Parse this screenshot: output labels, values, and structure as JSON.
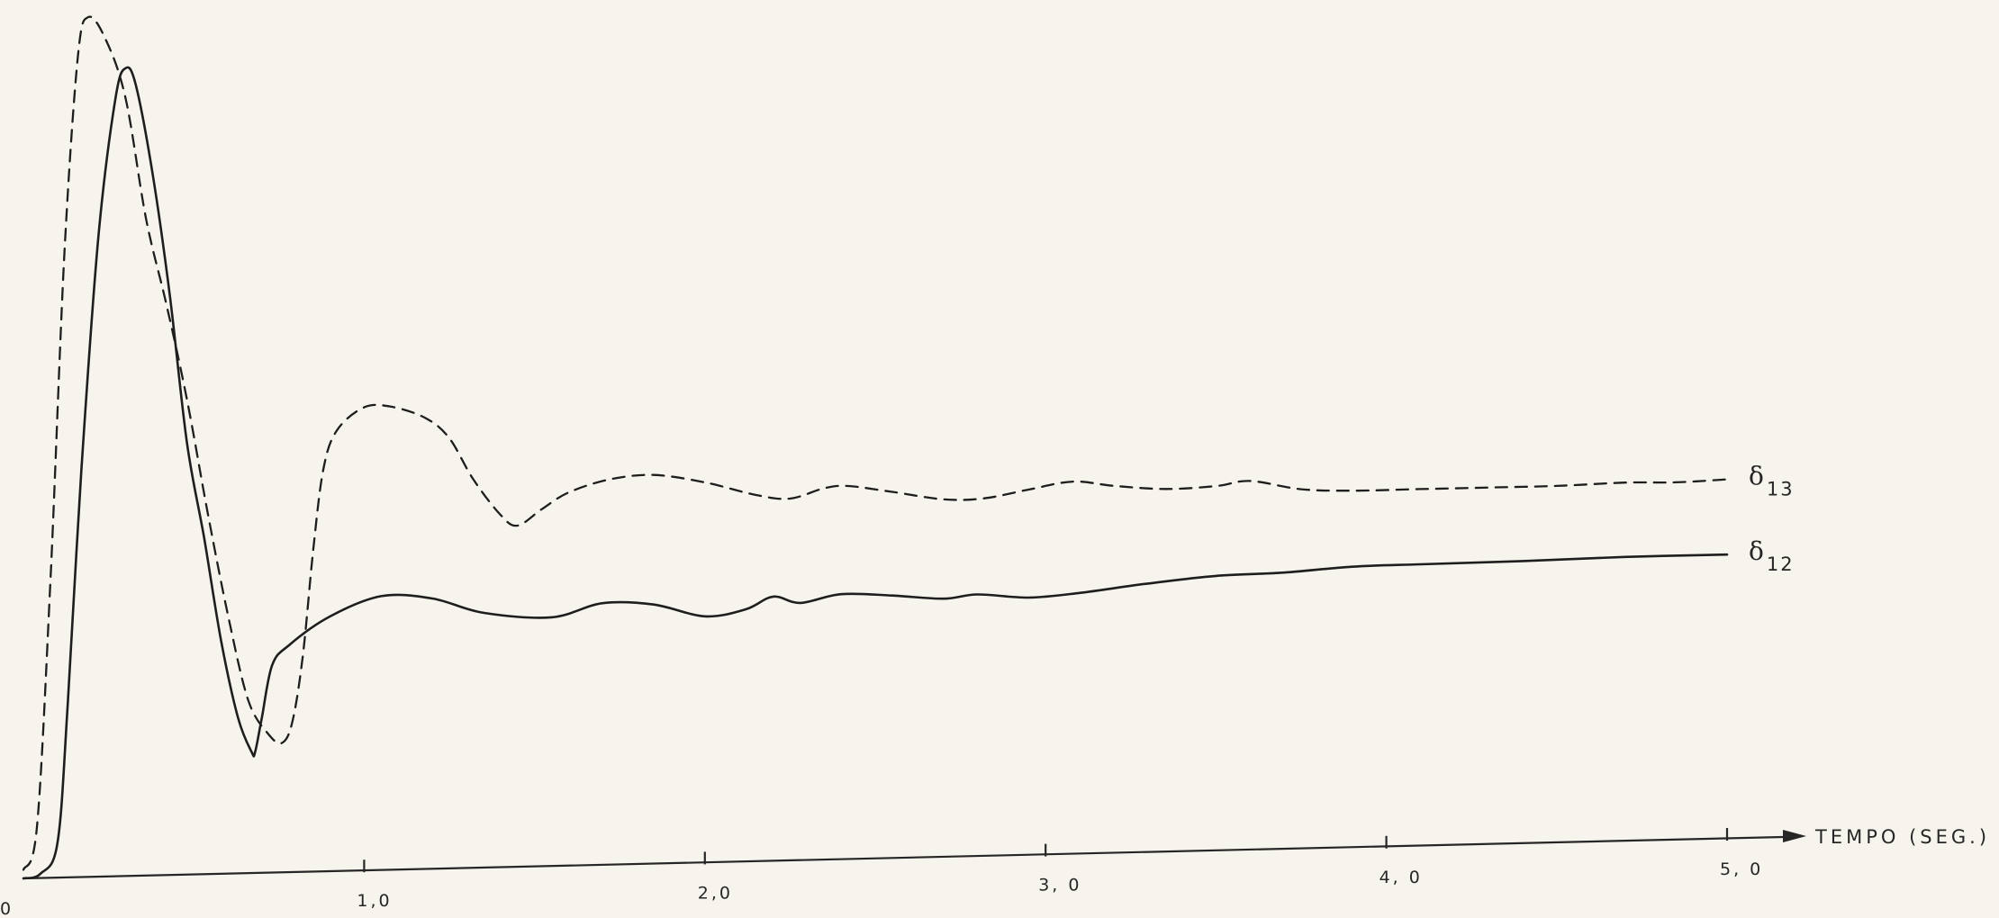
{
  "chart_data": {
    "type": "line",
    "title": "",
    "xlabel": "TEMPO  (SEG.)",
    "ylabel": "",
    "xlim": [
      0,
      5.3
    ],
    "ylim": [
      0,
      1.0
    ],
    "grid": false,
    "legend": "inline labels at right end of curves",
    "xticks": [
      {
        "value": 0.0,
        "label": "0"
      },
      {
        "value": 1.0,
        "label": "1,0"
      },
      {
        "value": 2.0,
        "label": "2,0"
      },
      {
        "value": 3.0,
        "label": "3, 0"
      },
      {
        "value": 4.0,
        "label": "4, 0"
      },
      {
        "value": 5.0,
        "label": "5, 0"
      }
    ],
    "series": [
      {
        "key": "e12",
        "name": "δ12",
        "style": "solid",
        "label_main": "δ",
        "label_sub": "12",
        "points": [
          [
            0.0,
            0.0
          ],
          [
            0.05,
            0.005
          ],
          [
            0.1,
            0.04
          ],
          [
            0.13,
            0.2
          ],
          [
            0.17,
            0.47
          ],
          [
            0.22,
            0.74
          ],
          [
            0.27,
            0.9
          ],
          [
            0.3,
            0.935
          ],
          [
            0.33,
            0.915
          ],
          [
            0.38,
            0.81
          ],
          [
            0.43,
            0.67
          ],
          [
            0.48,
            0.5
          ],
          [
            0.53,
            0.39
          ],
          [
            0.58,
            0.27
          ],
          [
            0.63,
            0.18
          ],
          [
            0.67,
            0.14
          ],
          [
            0.68,
            0.14
          ],
          [
            0.7,
            0.18
          ],
          [
            0.73,
            0.24
          ],
          [
            0.78,
            0.263
          ],
          [
            0.9,
            0.295
          ],
          [
            1.05,
            0.317
          ],
          [
            1.2,
            0.313
          ],
          [
            1.35,
            0.295
          ],
          [
            1.55,
            0.288
          ],
          [
            1.7,
            0.303
          ],
          [
            1.85,
            0.3
          ],
          [
            2.0,
            0.285
          ],
          [
            2.12,
            0.292
          ],
          [
            2.2,
            0.306
          ],
          [
            2.28,
            0.298
          ],
          [
            2.4,
            0.307
          ],
          [
            2.55,
            0.304
          ],
          [
            2.7,
            0.299
          ],
          [
            2.8,
            0.303
          ],
          [
            2.95,
            0.298
          ],
          [
            3.1,
            0.302
          ],
          [
            3.3,
            0.311
          ],
          [
            3.5,
            0.318
          ],
          [
            3.7,
            0.32
          ],
          [
            3.9,
            0.325
          ],
          [
            4.1,
            0.326
          ],
          [
            4.4,
            0.327
          ],
          [
            4.7,
            0.329
          ],
          [
            5.0,
            0.329
          ]
        ]
      },
      {
        "key": "e13",
        "name": "δ13",
        "style": "dashed",
        "label_main": "δ",
        "label_sub": "13",
        "points": [
          [
            0.0,
            0.01
          ],
          [
            0.04,
            0.06
          ],
          [
            0.08,
            0.35
          ],
          [
            0.12,
            0.72
          ],
          [
            0.16,
            0.95
          ],
          [
            0.19,
            0.995
          ],
          [
            0.24,
            0.97
          ],
          [
            0.3,
            0.9
          ],
          [
            0.36,
            0.76
          ],
          [
            0.42,
            0.66
          ],
          [
            0.48,
            0.55
          ],
          [
            0.54,
            0.42
          ],
          [
            0.6,
            0.3
          ],
          [
            0.66,
            0.2
          ],
          [
            0.72,
            0.16
          ],
          [
            0.76,
            0.15
          ],
          [
            0.79,
            0.175
          ],
          [
            0.82,
            0.25
          ],
          [
            0.85,
            0.37
          ],
          [
            0.88,
            0.465
          ],
          [
            0.92,
            0.51
          ],
          [
            1.0,
            0.536
          ],
          [
            1.08,
            0.536
          ],
          [
            1.18,
            0.522
          ],
          [
            1.25,
            0.498
          ],
          [
            1.32,
            0.45
          ],
          [
            1.4,
            0.408
          ],
          [
            1.45,
            0.395
          ],
          [
            1.52,
            0.413
          ],
          [
            1.6,
            0.432
          ],
          [
            1.72,
            0.446
          ],
          [
            1.85,
            0.45
          ],
          [
            2.0,
            0.44
          ],
          [
            2.15,
            0.424
          ],
          [
            2.25,
            0.419
          ],
          [
            2.35,
            0.43
          ],
          [
            2.42,
            0.432
          ],
          [
            2.55,
            0.424
          ],
          [
            2.7,
            0.414
          ],
          [
            2.82,
            0.414
          ],
          [
            2.95,
            0.423
          ],
          [
            3.08,
            0.431
          ],
          [
            3.2,
            0.425
          ],
          [
            3.35,
            0.42
          ],
          [
            3.5,
            0.422
          ],
          [
            3.6,
            0.427
          ],
          [
            3.75,
            0.416
          ],
          [
            3.9,
            0.413
          ],
          [
            4.1,
            0.413
          ],
          [
            4.3,
            0.413
          ],
          [
            4.5,
            0.413
          ],
          [
            4.7,
            0.415
          ],
          [
            4.85,
            0.414
          ],
          [
            5.0,
            0.416
          ]
        ]
      }
    ]
  }
}
